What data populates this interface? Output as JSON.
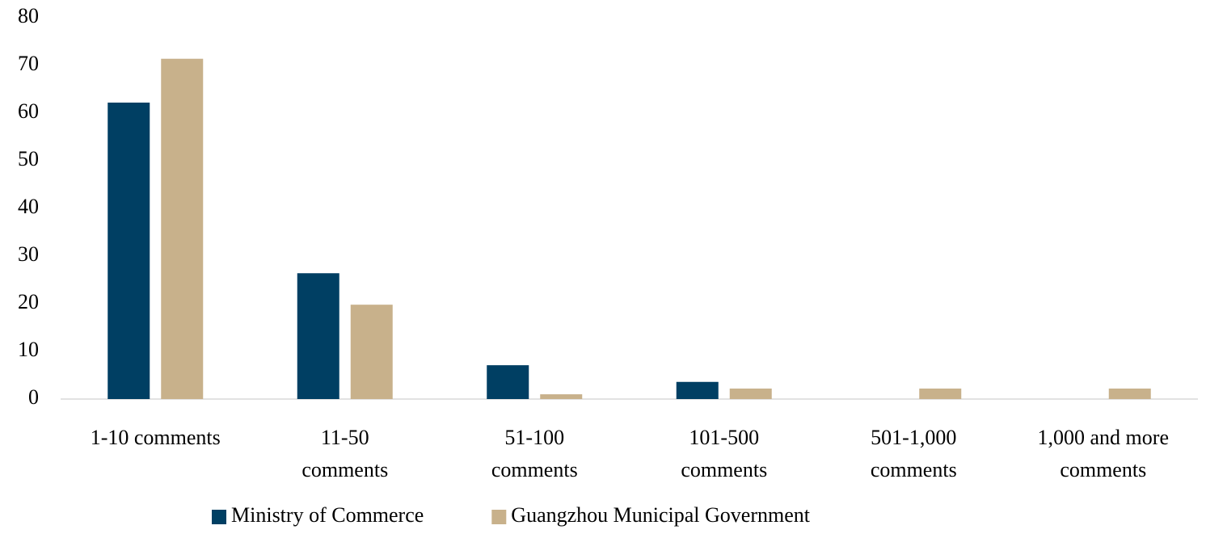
{
  "chart_data": {
    "type": "bar",
    "categories": [
      "1-10 comments",
      "11-50\ncomments",
      "51-100\ncomments",
      "101-500\ncomments",
      "501-1,000\ncomments",
      "1,000 and more\ncomments"
    ],
    "series": [
      {
        "name": "Ministry of Commerce",
        "color": "#003f63",
        "values": [
          62.2,
          26.4,
          7.1,
          3.6,
          0,
          0
        ]
      },
      {
        "name": "Guangzhou Municipal Government",
        "color": "#c8b18b",
        "values": [
          71.4,
          19.8,
          1.0,
          2.2,
          2.2,
          2.2
        ]
      }
    ],
    "ylim": [
      0,
      80
    ],
    "yticks": [
      0,
      10,
      20,
      30,
      40,
      50,
      60,
      70,
      80
    ],
    "grid": false,
    "legend": "bottom"
  }
}
